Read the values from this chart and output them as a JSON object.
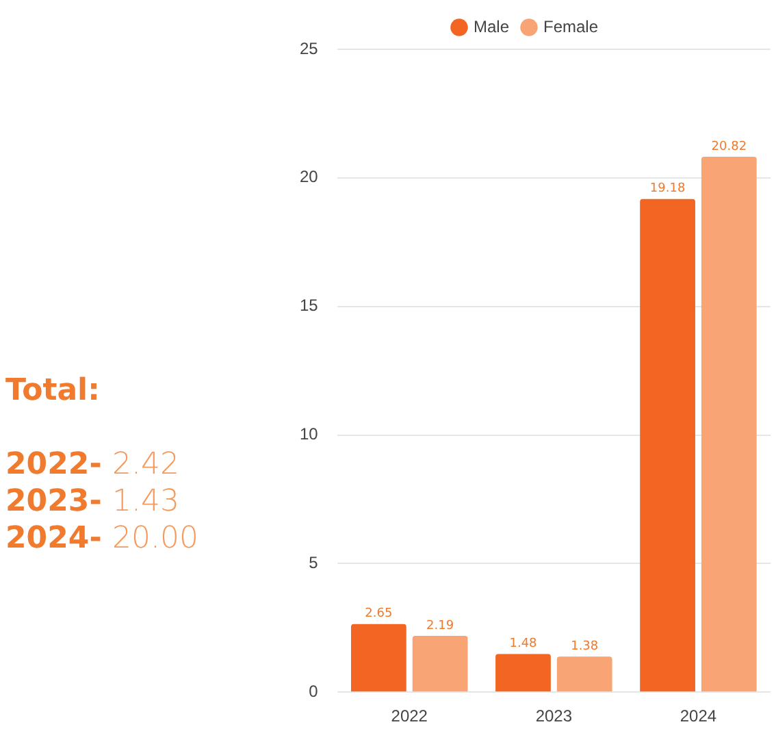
{
  "chart_data": {
    "type": "bar",
    "categories": [
      "2022",
      "2023",
      "2024"
    ],
    "series": [
      {
        "name": "Male",
        "color": "#f26522",
        "values": [
          2.65,
          1.48,
          19.18
        ]
      },
      {
        "name": "Female",
        "color": "#f9a474",
        "values": [
          2.19,
          1.38,
          20.82
        ]
      }
    ],
    "ylim": [
      0,
      25
    ],
    "yticks": [
      0,
      5,
      10,
      15,
      20,
      25
    ],
    "grid": "y",
    "legend": "top",
    "data_labels": true,
    "annotations": [
      "Total:",
      "2022- 2.42",
      "2023- 1.43",
      "2024- 20.00"
    ]
  }
}
